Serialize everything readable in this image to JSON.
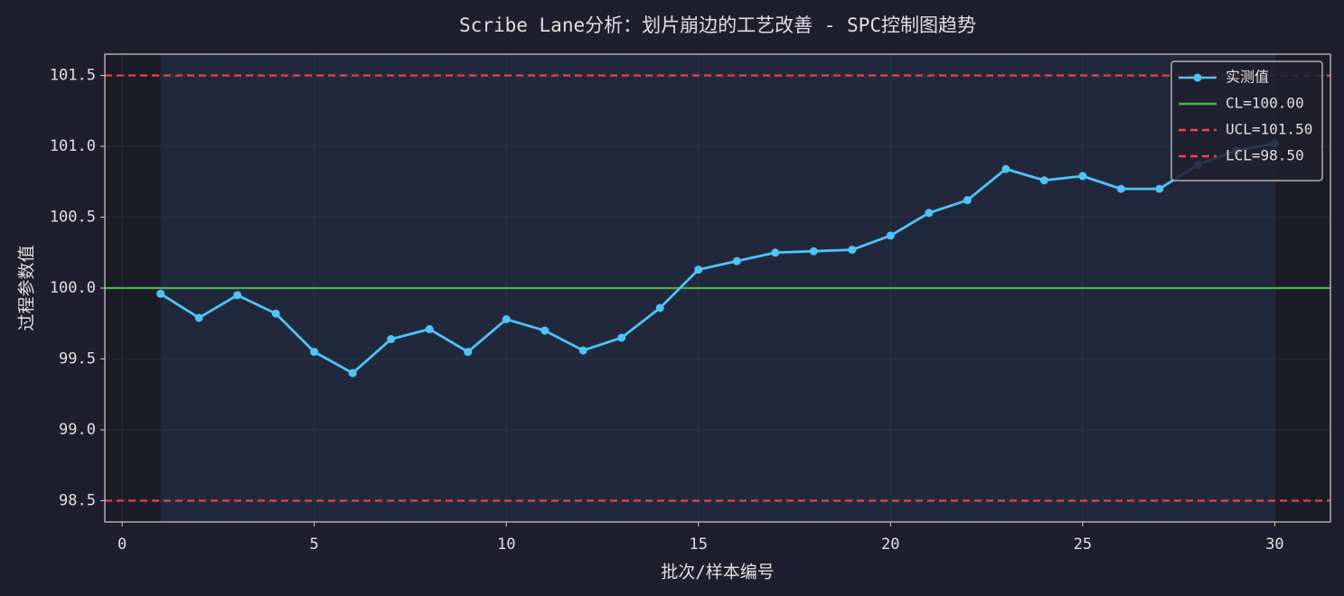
{
  "chart_data": {
    "type": "line",
    "title": "Scribe Lane分析：划片崩边的工艺改善 - SPC控制图趋势",
    "xlabel": "批次/样本编号",
    "ylabel": "过程参数值",
    "x": [
      1,
      2,
      3,
      4,
      5,
      6,
      7,
      8,
      9,
      10,
      11,
      12,
      13,
      14,
      15,
      16,
      17,
      18,
      19,
      20,
      21,
      22,
      23,
      24,
      25,
      26,
      27,
      28,
      29,
      30
    ],
    "series": [
      {
        "name": "实测值",
        "color": "#4fc3f7",
        "values": [
          99.96,
          99.79,
          99.95,
          99.82,
          99.55,
          99.4,
          99.64,
          99.71,
          99.55,
          99.78,
          99.7,
          99.56,
          99.65,
          99.86,
          100.13,
          100.19,
          100.25,
          100.26,
          100.27,
          100.37,
          100.53,
          100.62,
          100.84,
          100.76,
          100.79,
          100.7,
          100.7,
          100.87,
          100.97,
          101.02
        ]
      }
    ],
    "control_lines": [
      {
        "name": "CL=100.00",
        "value": 100,
        "color": "#4caf50",
        "dashed": false
      },
      {
        "name": "UCL=101.50",
        "value": 101.5,
        "color": "#ef4444",
        "dashed": true
      },
      {
        "name": "LCL=98.50",
        "value": 98.5,
        "color": "#ef4444",
        "dashed": true
      }
    ],
    "xlim": [
      -0.45,
      31.45
    ],
    "ylim": [
      98.35,
      101.65
    ],
    "xticks": [
      0,
      5,
      10,
      15,
      20,
      25,
      30
    ],
    "yticks": [
      98.5,
      {
        "value": 99,
        "label": "99.0"
      },
      99.5,
      {
        "value": 100,
        "label": "100.0"
      },
      100.5,
      {
        "value": 101,
        "label": "101.0"
      },
      101.5
    ],
    "grid": true,
    "legend": "upper right"
  }
}
